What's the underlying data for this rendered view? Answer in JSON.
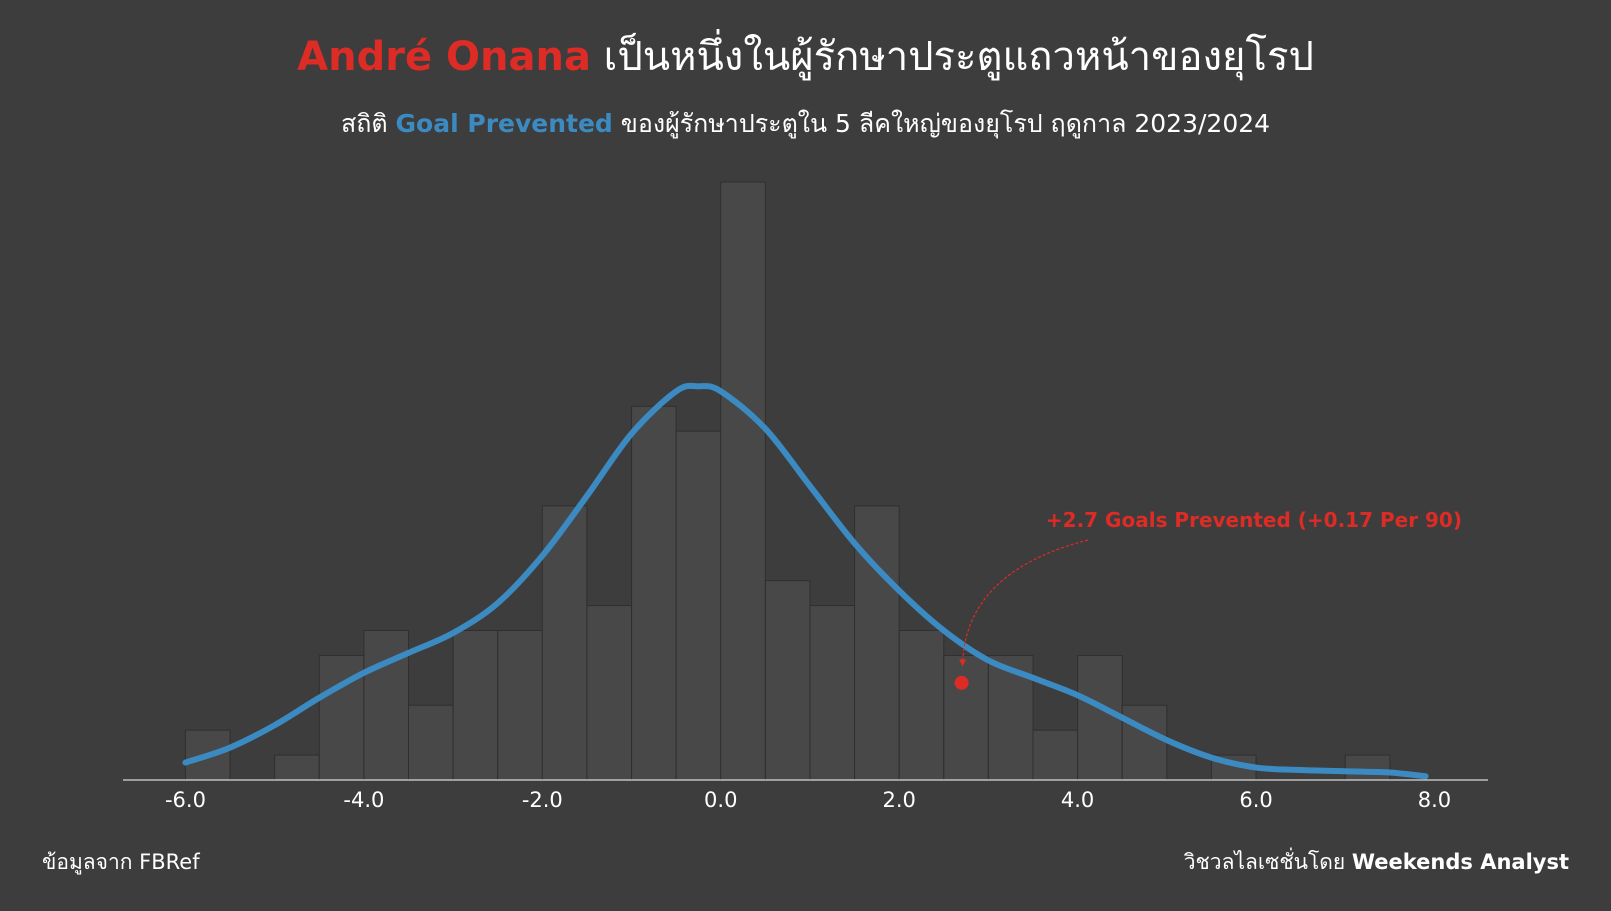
{
  "header": {
    "title_name": "André Onana",
    "title_rest": "เป็นหนึ่งในผู้รักษาประตูแถวหน้าของยุโรป",
    "subtitle_pre": "สถิติ",
    "subtitle_highlight": "Goal Prevented",
    "subtitle_post": "ของผู้รักษาประตูใน 5 ลีคใหญ่ของยุโรป ฤดูกาล 2023/2024"
  },
  "footer": {
    "source": "ข้อมูลจาก FBRef",
    "credit_pre": "วิชวลไลเซชั่นโดย",
    "credit_name": "Weekends Analyst"
  },
  "colors": {
    "background": "#3d3d3d",
    "bar_fill": "#484848",
    "bar_stroke": "#2f2f2f",
    "curve": "#3b8bc2",
    "highlight": "#dd2b25",
    "text": "#ffffff"
  },
  "chart_data": {
    "type": "bar",
    "overlay": "density-curve",
    "bin_width": 0.5,
    "xlim": [
      -6.7,
      8.6
    ],
    "ylim": [
      0,
      24
    ],
    "xticks": [
      -6.0,
      -4.0,
      -2.0,
      0.0,
      2.0,
      4.0,
      6.0,
      8.0
    ],
    "xtick_labels": [
      "-6.0",
      "-4.0",
      "-2.0",
      "0.0",
      "2.0",
      "4.0",
      "6.0",
      "8.0"
    ],
    "bins": [
      {
        "x0": -6.0,
        "count": 2
      },
      {
        "x0": -5.5,
        "count": 0
      },
      {
        "x0": -5.0,
        "count": 1
      },
      {
        "x0": -4.5,
        "count": 5
      },
      {
        "x0": -4.0,
        "count": 6
      },
      {
        "x0": -3.5,
        "count": 3
      },
      {
        "x0": -3.0,
        "count": 6
      },
      {
        "x0": -2.5,
        "count": 6
      },
      {
        "x0": -2.0,
        "count": 11
      },
      {
        "x0": -1.5,
        "count": 7
      },
      {
        "x0": -1.0,
        "count": 15
      },
      {
        "x0": -0.5,
        "count": 14
      },
      {
        "x0": 0.0,
        "count": 24
      },
      {
        "x0": 0.5,
        "count": 8
      },
      {
        "x0": 1.0,
        "count": 7
      },
      {
        "x0": 1.5,
        "count": 11
      },
      {
        "x0": 2.0,
        "count": 6
      },
      {
        "x0": 2.5,
        "count": 5
      },
      {
        "x0": 3.0,
        "count": 5
      },
      {
        "x0": 3.5,
        "count": 2
      },
      {
        "x0": 4.0,
        "count": 5
      },
      {
        "x0": 4.5,
        "count": 3
      },
      {
        "x0": 5.0,
        "count": 0
      },
      {
        "x0": 5.5,
        "count": 1
      },
      {
        "x0": 6.0,
        "count": 0
      },
      {
        "x0": 6.5,
        "count": 0
      },
      {
        "x0": 7.0,
        "count": 1
      }
    ],
    "density_curve": [
      [
        -6.0,
        0.7
      ],
      [
        -5.5,
        1.3
      ],
      [
        -5.0,
        2.2
      ],
      [
        -4.5,
        3.3
      ],
      [
        -4.0,
        4.3
      ],
      [
        -3.5,
        5.1
      ],
      [
        -3.0,
        5.9
      ],
      [
        -2.5,
        7.1
      ],
      [
        -2.0,
        9.0
      ],
      [
        -1.5,
        11.4
      ],
      [
        -1.0,
        13.9
      ],
      [
        -0.5,
        15.6
      ],
      [
        -0.25,
        15.8
      ],
      [
        0.0,
        15.6
      ],
      [
        0.5,
        14.1
      ],
      [
        1.0,
        11.8
      ],
      [
        1.5,
        9.5
      ],
      [
        2.0,
        7.6
      ],
      [
        2.5,
        6.0
      ],
      [
        3.0,
        4.8
      ],
      [
        3.5,
        4.1
      ],
      [
        4.0,
        3.4
      ],
      [
        4.5,
        2.5
      ],
      [
        5.0,
        1.6
      ],
      [
        5.5,
        0.9
      ],
      [
        6.0,
        0.5
      ],
      [
        6.5,
        0.4
      ],
      [
        7.0,
        0.35
      ],
      [
        7.5,
        0.3
      ],
      [
        7.9,
        0.15
      ]
    ],
    "highlight_point": {
      "x": 2.7,
      "y": 3.9
    },
    "annotation": "+2.7 Goals Prevented (+0.17 Per 90)"
  }
}
